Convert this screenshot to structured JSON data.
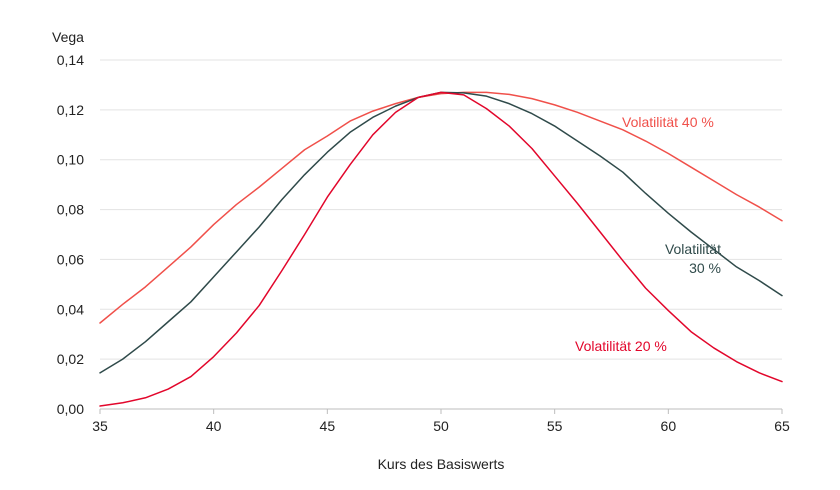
{
  "chart_data": {
    "type": "line",
    "title": "",
    "ylabel": "Vega",
    "xlabel": "Kurs des Basiswerts",
    "xlim": [
      35,
      65
    ],
    "ylim": [
      0,
      0.14
    ],
    "x_ticks": [
      35,
      40,
      45,
      50,
      55,
      60,
      65
    ],
    "x_tick_labels": [
      "35",
      "40",
      "45",
      "50",
      "55",
      "60",
      "65"
    ],
    "y_ticks": [
      0,
      0.02,
      0.04,
      0.06,
      0.08,
      0.1,
      0.12,
      0.14
    ],
    "y_tick_labels": [
      "0,00",
      "0,02",
      "0,04",
      "0,06",
      "0,08",
      "0,10",
      "0,12",
      "0,14"
    ],
    "grid": "horizontal",
    "x": [
      35,
      36,
      37,
      38,
      39,
      40,
      41,
      42,
      43,
      44,
      45,
      46,
      47,
      48,
      49,
      50,
      51,
      52,
      53,
      54,
      55,
      56,
      57,
      58,
      59,
      60,
      61,
      62,
      63,
      64,
      65
    ],
    "series": [
      {
        "name": "Volatilität 40 %",
        "label_lines": [
          "Volatilität 40 %"
        ],
        "color": "#f0504a",
        "values": [
          0.0345,
          0.042,
          0.049,
          0.057,
          0.065,
          0.074,
          0.082,
          0.089,
          0.0965,
          0.104,
          0.1095,
          0.1155,
          0.1195,
          0.1225,
          0.125,
          0.1265,
          0.127,
          0.127,
          0.1262,
          0.1245,
          0.122,
          0.119,
          0.1155,
          0.112,
          0.1075,
          0.1025,
          0.097,
          0.0915,
          0.086,
          0.081,
          0.0755
        ]
      },
      {
        "name": "Volatilität 30 %",
        "label_lines": [
          "Volatilität",
          "30 %"
        ],
        "color": "#2f4a4a",
        "values": [
          0.0145,
          0.02,
          0.027,
          0.035,
          0.043,
          0.053,
          0.063,
          0.073,
          0.084,
          0.094,
          0.103,
          0.111,
          0.117,
          0.1215,
          0.125,
          0.127,
          0.1268,
          0.1255,
          0.1225,
          0.1185,
          0.1135,
          0.1075,
          0.1015,
          0.095,
          0.0865,
          0.0785,
          0.071,
          0.064,
          0.057,
          0.0515,
          0.0455
        ]
      },
      {
        "name": "Volatilität 20 %",
        "label_lines": [
          "Volatilität 20 %"
        ],
        "color": "#e2062b",
        "values": [
          0.0012,
          0.0025,
          0.0045,
          0.008,
          0.013,
          0.021,
          0.0305,
          0.0415,
          0.0555,
          0.07,
          0.085,
          0.098,
          0.11,
          0.119,
          0.125,
          0.127,
          0.126,
          0.1205,
          0.1135,
          0.1045,
          0.0935,
          0.0825,
          0.071,
          0.0595,
          0.0485,
          0.0395,
          0.031,
          0.0245,
          0.019,
          0.0145,
          0.011
        ]
      }
    ]
  }
}
